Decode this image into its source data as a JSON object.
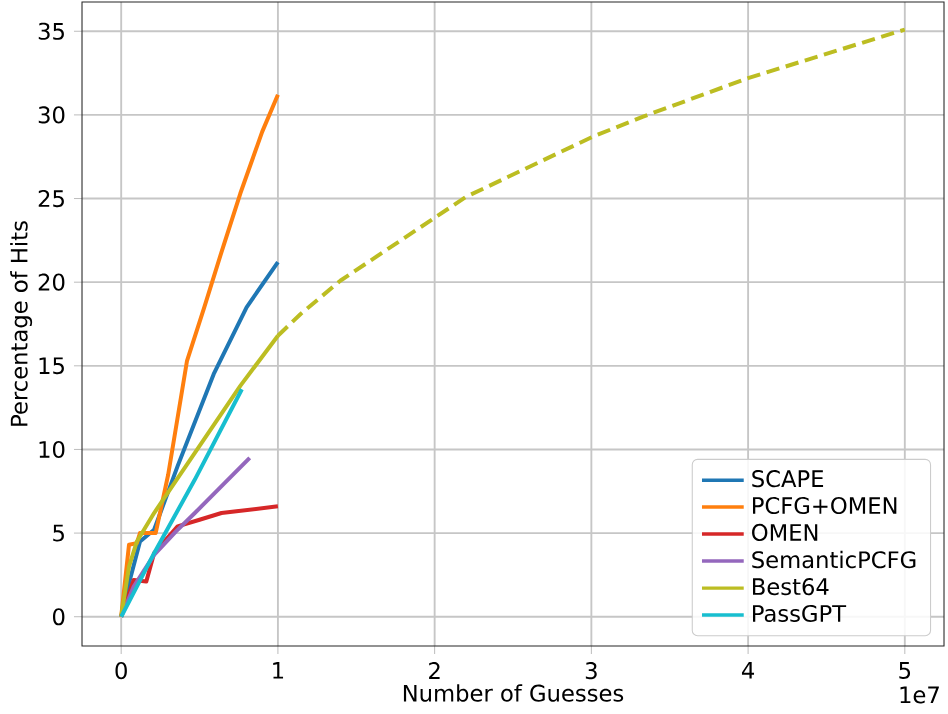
{
  "chart_data": {
    "type": "line",
    "xlabel": "Number of Guesses",
    "ylabel": "Percentage of Hits",
    "xlim": [
      -0.25,
      5.25
    ],
    "ylim": [
      -1.75,
      36.75
    ],
    "xticks": [
      0,
      1,
      2,
      3,
      4,
      5
    ],
    "yticks": [
      0,
      5,
      10,
      15,
      20,
      25,
      30,
      35
    ],
    "grid": true,
    "legend": "bottom right",
    "marker": "none",
    "annotations": [
      "1e7"
    ],
    "series": [
      {
        "name": "SCAPE",
        "color": "#1f77b4",
        "x": [
          0,
          0.05,
          0.12,
          0.21,
          0.36,
          0.59,
          0.8,
          1.0
        ],
        "values": [
          0,
          2,
          4.5,
          5.2,
          9,
          14.5,
          18.5,
          21.2
        ]
      },
      {
        "name": "PCFG+OMEN",
        "color": "#ff7f0e",
        "x": [
          0,
          0.05,
          0.1,
          0.12,
          0.22,
          0.3,
          0.42,
          0.53,
          0.64,
          0.76,
          0.9,
          1.0
        ],
        "values": [
          0,
          4.3,
          4.4,
          5,
          5,
          8.5,
          15.3,
          18.5,
          21.8,
          25.3,
          29,
          31.2
        ]
      },
      {
        "name": "OMEN",
        "color": "#d62728",
        "x": [
          0,
          0.08,
          0.16,
          0.21,
          0.36,
          0.5,
          0.64,
          1.0
        ],
        "values": [
          0,
          2.2,
          2.1,
          3.8,
          5.4,
          5.8,
          6.2,
          6.6
        ]
      },
      {
        "name": "SemanticPCFG",
        "color": "#9467bd",
        "x": [
          0,
          0.08,
          0.21,
          0.35,
          0.47,
          0.65,
          0.82
        ],
        "values": [
          0,
          1.8,
          3.7,
          5.1,
          6.2,
          7.9,
          9.5
        ]
      },
      {
        "name": "Best64",
        "color": "#bcbd22",
        "x": [
          0,
          0.05,
          0.1,
          0.21,
          0.47,
          0.76,
          1.0
        ],
        "values": [
          0,
          3,
          4.5,
          6.2,
          9.8,
          13.8,
          16.8
        ]
      },
      {
        "name": "PassGPT",
        "color": "#17becf",
        "x": [
          0,
          0.1,
          0.21,
          0.47,
          0.77
        ],
        "values": [
          0,
          1.8,
          3.8,
          8.2,
          13.6
        ]
      },
      {
        "color": "#bcbd22",
        "line_style": "dashed",
        "x": [
          1.0,
          1.145,
          1.4,
          2.2,
          3.01,
          3.33,
          4.0,
          5.0
        ],
        "values": [
          16.8,
          18.1,
          20.1,
          25.1,
          28.7,
          29.9,
          32.2,
          35.1
        ]
      }
    ]
  }
}
